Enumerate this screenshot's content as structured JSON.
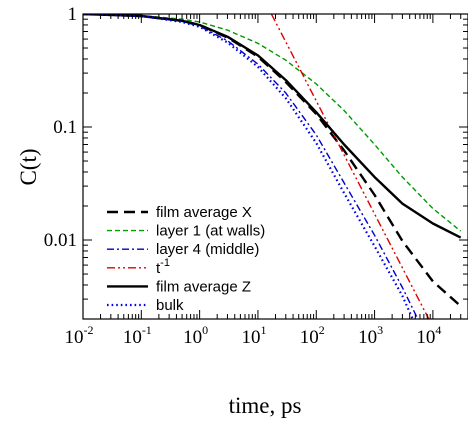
{
  "chart_data": {
    "type": "line",
    "xlabel": "time, ps",
    "ylabel": "C(t)",
    "x_scale": "log",
    "y_scale": "log",
    "xlim": [
      0.01,
      40000
    ],
    "ylim": [
      0.002,
      1
    ],
    "grid": false,
    "legend_placement": "lower-left",
    "x_ticks": [
      {
        "base": "10",
        "exp": "-2",
        "value": 0.01
      },
      {
        "base": "10",
        "exp": "-1",
        "value": 0.1
      },
      {
        "base": "10",
        "exp": "0",
        "value": 1
      },
      {
        "base": "10",
        "exp": "1",
        "value": 10
      },
      {
        "base": "10",
        "exp": "2",
        "value": 100
      },
      {
        "base": "10",
        "exp": "3",
        "value": 1000
      },
      {
        "base": "10",
        "exp": "4",
        "value": 10000
      }
    ],
    "y_ticks": [
      {
        "label": "1",
        "value": 1
      },
      {
        "label": "0.1",
        "value": 0.1
      },
      {
        "label": "0.01",
        "value": 0.01
      }
    ],
    "series": [
      {
        "name": "film average X",
        "color": "#000000",
        "dash": "long-dash",
        "style": "black-dashed",
        "points": [
          [
            0.01,
            1.0
          ],
          [
            0.1,
            0.96
          ],
          [
            0.5,
            0.87
          ],
          [
            1,
            0.8
          ],
          [
            3,
            0.62
          ],
          [
            10,
            0.42
          ],
          [
            30,
            0.25
          ],
          [
            100,
            0.13
          ],
          [
            300,
            0.062
          ],
          [
            1000,
            0.025
          ],
          [
            3000,
            0.0098
          ],
          [
            10000,
            0.0043
          ],
          [
            30000,
            0.0026
          ]
        ]
      },
      {
        "name": "layer 1 (at walls)",
        "color": "#009900",
        "dash": "short-dash",
        "style": "green-dashed",
        "points": [
          [
            0.01,
            1.0
          ],
          [
            0.1,
            0.97
          ],
          [
            0.5,
            0.9
          ],
          [
            1,
            0.85
          ],
          [
            3,
            0.72
          ],
          [
            10,
            0.55
          ],
          [
            30,
            0.39
          ],
          [
            100,
            0.24
          ],
          [
            300,
            0.14
          ],
          [
            1000,
            0.07
          ],
          [
            3000,
            0.036
          ],
          [
            10000,
            0.019
          ],
          [
            30000,
            0.012
          ]
        ]
      },
      {
        "name": "layer 4 (middle)",
        "color": "#0000cc",
        "dash": "dash-dot",
        "style": "blue-dashdot",
        "points": [
          [
            0.01,
            1.0
          ],
          [
            0.1,
            0.96
          ],
          [
            0.5,
            0.86
          ],
          [
            1,
            0.78
          ],
          [
            3,
            0.58
          ],
          [
            10,
            0.36
          ],
          [
            30,
            0.2
          ],
          [
            100,
            0.085
          ],
          [
            300,
            0.032
          ],
          [
            1000,
            0.011
          ],
          [
            3000,
            0.0038
          ],
          [
            5500,
            0.002
          ]
        ]
      },
      {
        "name": "t",
        "name_superscript": "-1",
        "color": "#dd0000",
        "dash": "dash-dot-dot",
        "style": "red-dashdotdot",
        "points": [
          [
            17,
            1.0
          ],
          [
            100,
            0.17
          ],
          [
            1000,
            0.017
          ],
          [
            8500,
            0.002
          ]
        ]
      },
      {
        "name": "film average Z",
        "color": "#000000",
        "dash": "solid",
        "style": "black-solid",
        "points": [
          [
            0.01,
            1.0
          ],
          [
            0.1,
            0.96
          ],
          [
            0.5,
            0.87
          ],
          [
            1,
            0.8
          ],
          [
            3,
            0.63
          ],
          [
            10,
            0.43
          ],
          [
            30,
            0.26
          ],
          [
            100,
            0.135
          ],
          [
            300,
            0.07
          ],
          [
            1000,
            0.036
          ],
          [
            3000,
            0.021
          ],
          [
            10000,
            0.014
          ],
          [
            30000,
            0.0105
          ]
        ]
      },
      {
        "name": "bulk",
        "color": "#0000ee",
        "dash": "dotted",
        "style": "blue-dotted",
        "points": [
          [
            0.01,
            1.0
          ],
          [
            0.1,
            0.96
          ],
          [
            0.5,
            0.85
          ],
          [
            1,
            0.77
          ],
          [
            3,
            0.56
          ],
          [
            10,
            0.34
          ],
          [
            30,
            0.18
          ],
          [
            100,
            0.072
          ],
          [
            300,
            0.026
          ],
          [
            1000,
            0.0088
          ],
          [
            3000,
            0.0032
          ],
          [
            4500,
            0.002
          ]
        ]
      }
    ]
  }
}
